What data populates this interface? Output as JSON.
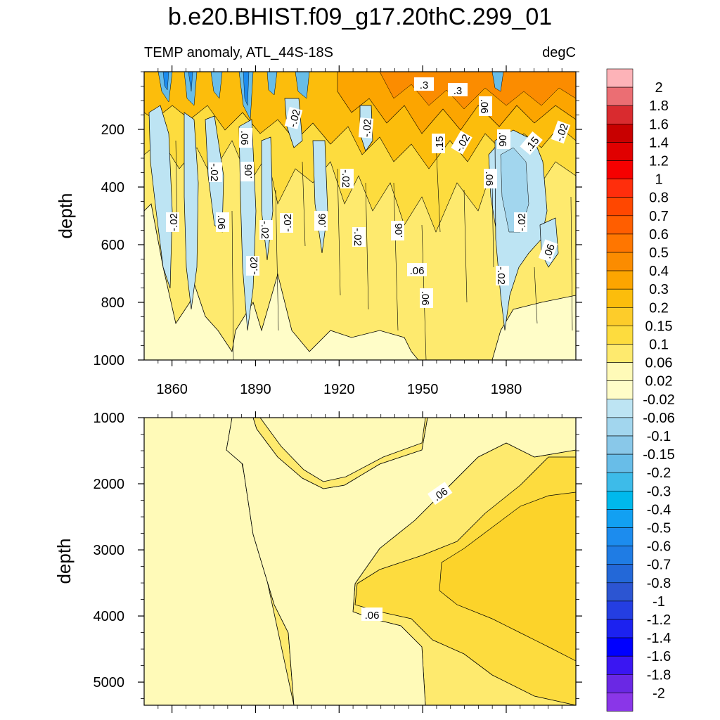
{
  "chart_data": {
    "type": "heatmap",
    "title": "b.e20.BHIST.f09_g17.20thC.299_01",
    "subtitle_left": "TEMP anomaly, ATL_44S-18S",
    "subtitle_right": "degC",
    "xlim": [
      1850,
      2005
    ],
    "x_ticks": [
      1860,
      1890,
      1920,
      1950,
      1980
    ],
    "x_tick_labels": [
      "1860",
      "1890",
      "1920",
      "1950",
      "1980"
    ],
    "upper_panel": {
      "ylabel": "depth",
      "ylim": [
        0,
        1000
      ],
      "y_ticks": [
        200,
        400,
        600,
        800,
        1000
      ],
      "y_tick_labels": [
        "200",
        "400",
        "600",
        "800",
        "1000"
      ]
    },
    "lower_panel": {
      "ylabel": "depth",
      "ylim": [
        1000,
        5350
      ],
      "y_ticks": [
        1000,
        2000,
        3000,
        4000,
        5000
      ],
      "y_tick_labels": [
        "1000",
        "2000",
        "3000",
        "4000",
        "5000"
      ]
    },
    "colorbar": {
      "labels": [
        "2",
        "1.8",
        "1.6",
        "1.4",
        "1.2",
        "1",
        "0.8",
        "0.7",
        "0.6",
        "0.5",
        "0.4",
        "0.3",
        "0.2",
        "0.15",
        "0.1",
        "0.06",
        "0.02",
        "-0.02",
        "-0.06",
        "-0.1",
        "-0.15",
        "-0.2",
        "-0.3",
        "-0.4",
        "-0.5",
        "-0.6",
        "-0.7",
        "-0.8",
        "-1",
        "-1.2",
        "-1.4",
        "-1.6",
        "-1.8",
        "-2"
      ],
      "colors": [
        "#fdb3b8",
        "#eb6e73",
        "#d92b2f",
        "#c80000",
        "#e00000",
        "#f60000",
        "#ff2e0c",
        "#ff4700",
        "#ff5e00",
        "#ff7600",
        "#fb8c00",
        "#fca500",
        "#fcbd0c",
        "#fdcc2a",
        "#fddc3e",
        "#feea6e",
        "#fffab8",
        "#fffdc8",
        "#bde4f3",
        "#a2d6ee",
        "#89c8e9",
        "#68bde8",
        "#3dbbe9",
        "#00b9ec",
        "#12a0f2",
        "#1c8cee",
        "#1f7ce4",
        "#2368d8",
        "#2c55d2",
        "#243ee2",
        "#1c22f0",
        "#0000ff",
        "#3a16f2",
        "#6a28e4",
        "#8a36e8"
      ]
    },
    "contour_labels_upper": [
      ".3",
      ".3",
      ".06",
      "-.02",
      "-.02",
      ".06",
      ".15",
      "-.02",
      ".06",
      ".15",
      "-.02",
      "-.02",
      ".06",
      "-.02",
      ".06",
      "-.02",
      ".06",
      "-.02",
      "-.02",
      ".06",
      "-.02",
      ".06",
      "-.02",
      ".06",
      "-.02",
      "-.02",
      ".06",
      ".06"
    ],
    "contour_labels_lower": [
      ".06",
      ".06"
    ]
  }
}
